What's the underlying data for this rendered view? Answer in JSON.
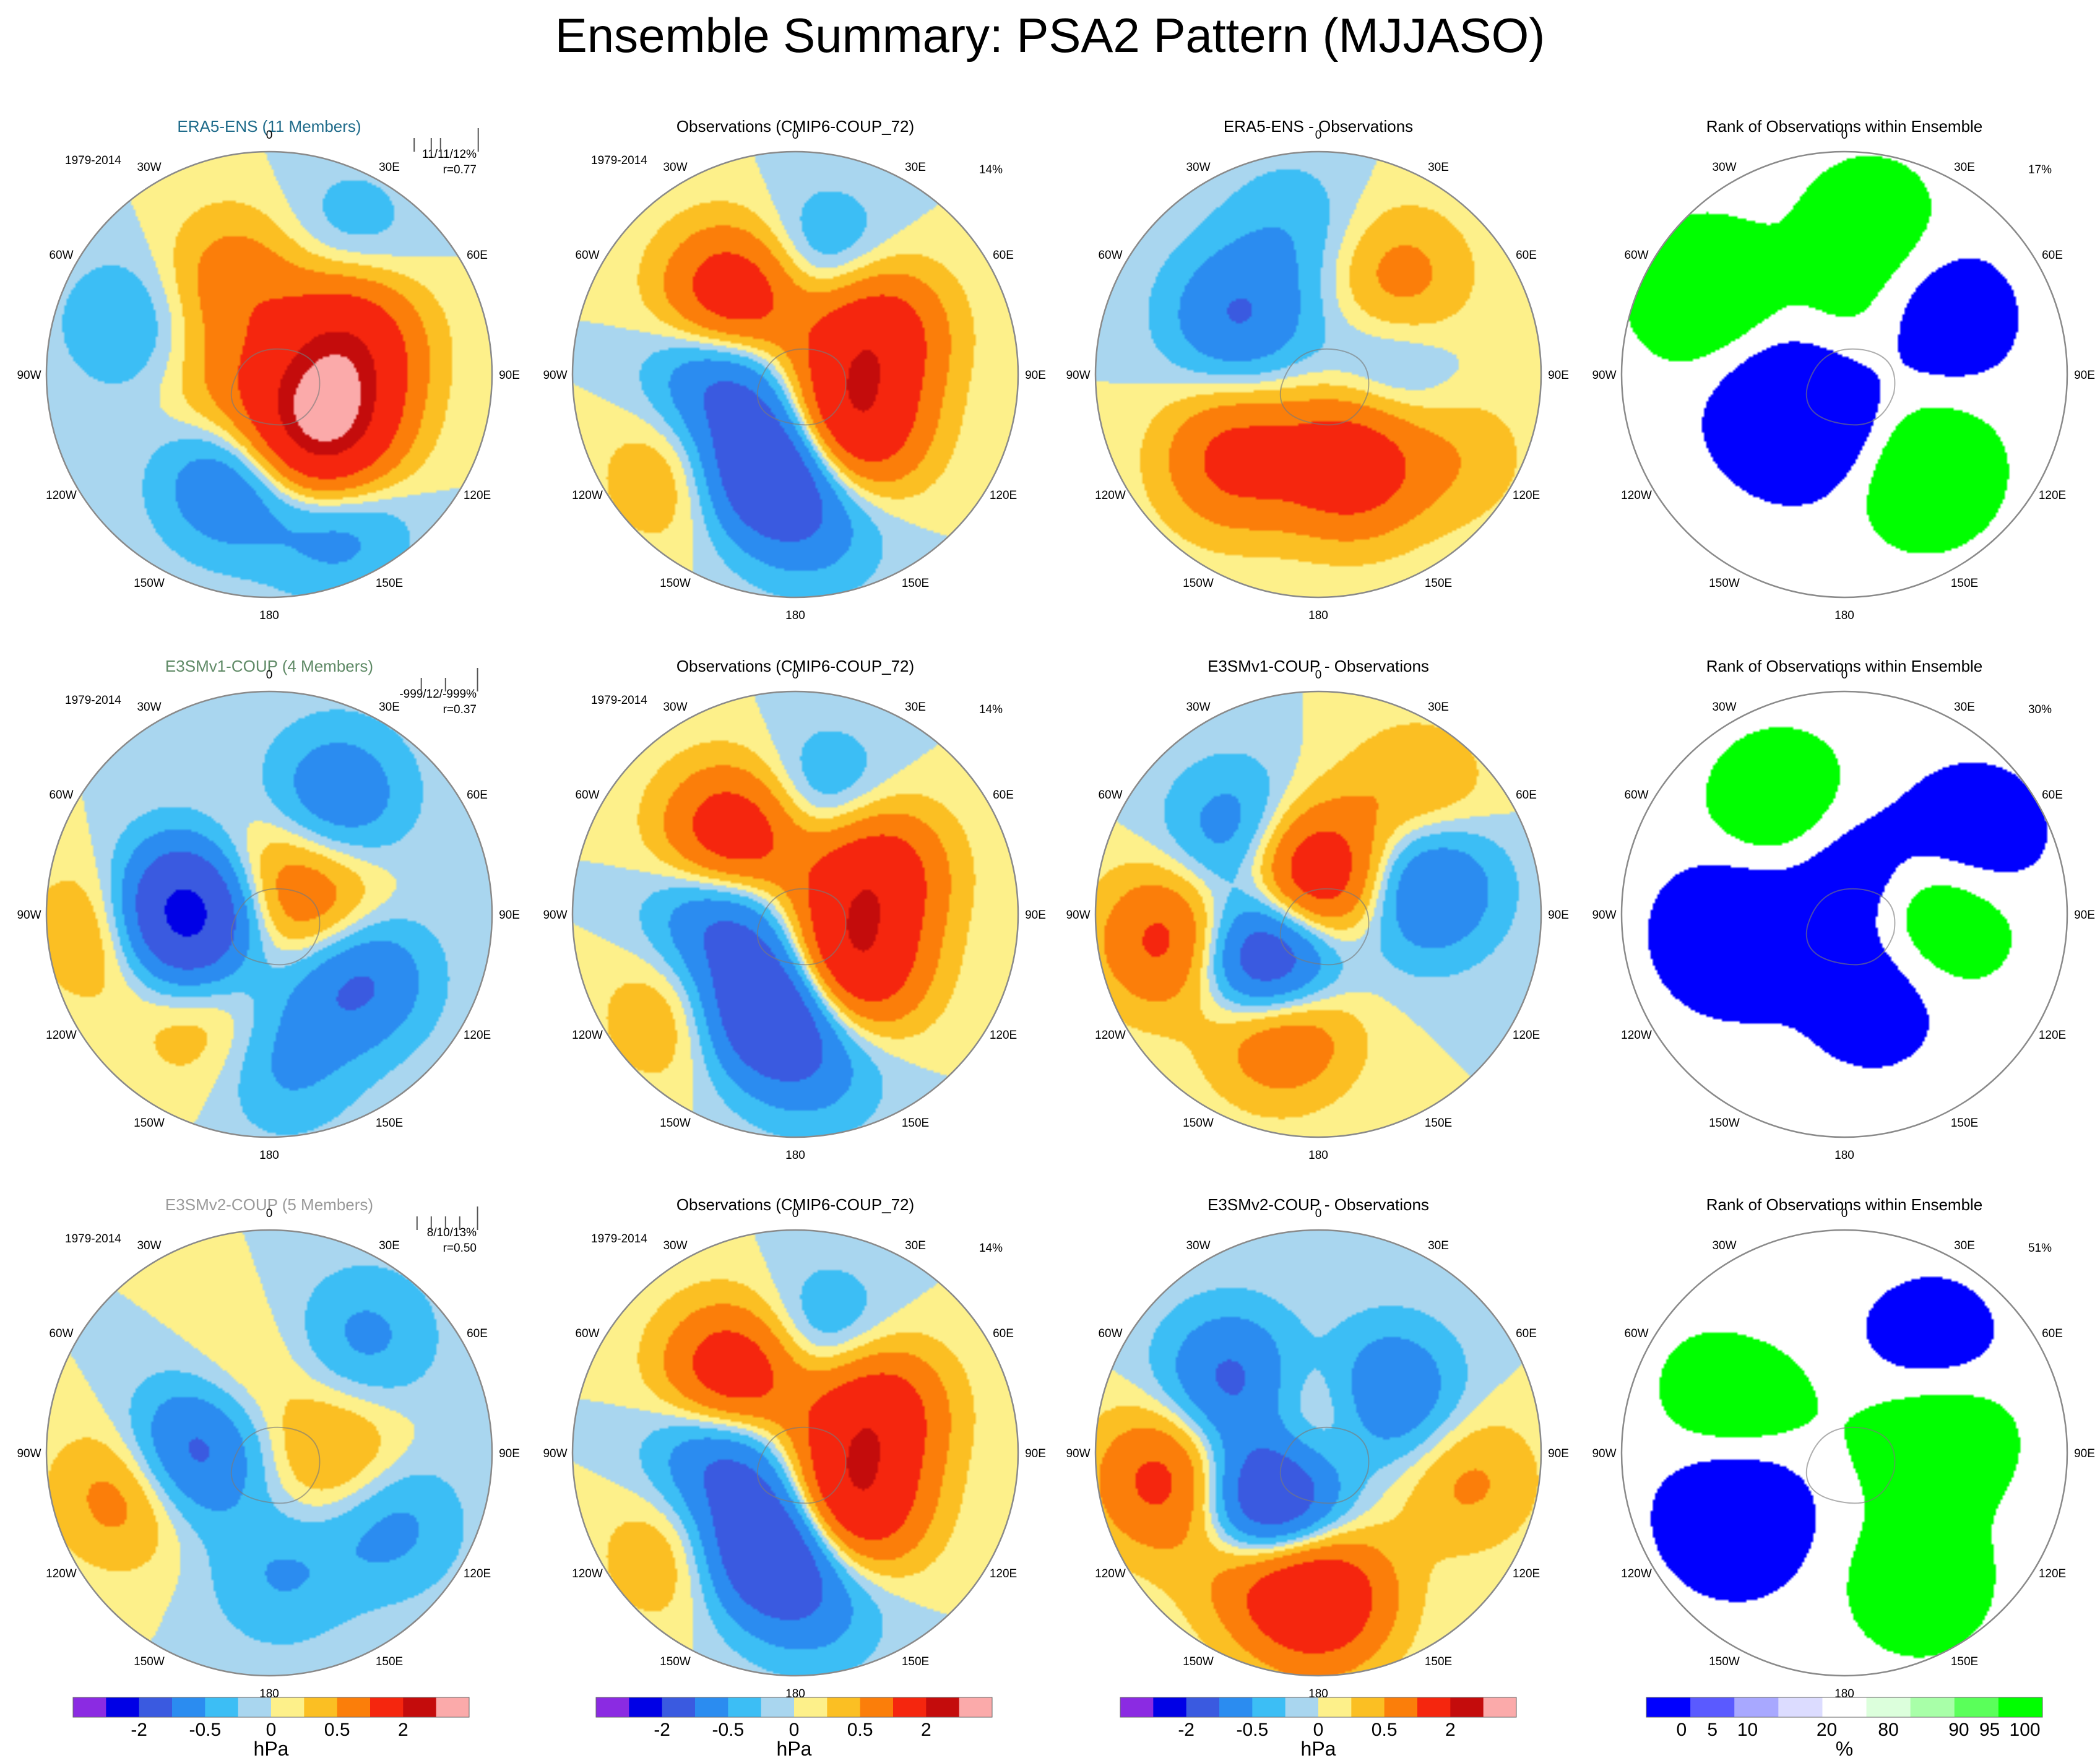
{
  "figure_title": "Ensemble Summary: PSA2 Pattern (MJJASO)",
  "colors": {
    "anomaly_levels": [
      "#8b2be2",
      "#0000e6",
      "#3a5ae0",
      "#2b8cf0",
      "#3cbef5",
      "#a9d6ef",
      "#fdf08a",
      "#fbbf23",
      "#fb7e0a",
      "#f5260e",
      "#c40c0c",
      "#fbaaaa"
    ],
    "rank_levels": [
      "#0000ff",
      "#5a5aff",
      "#a8a8ff",
      "#dcdcff",
      "#ffffff",
      "#dcffdc",
      "#a8ffa8",
      "#5aff5a",
      "#00ff00"
    ]
  },
  "lon_labels": [
    "0",
    "30E",
    "60E",
    "90E",
    "120E",
    "150E",
    "180",
    "150W",
    "120W",
    "90W",
    "60W",
    "30W"
  ],
  "colorbars": {
    "anomaly": {
      "unit": "hPa",
      "tick_labels": [
        "-2",
        "-0.5",
        "0",
        "0.5",
        "2"
      ]
    },
    "rank": {
      "unit": "%",
      "tick_labels": [
        "0",
        "5",
        "10",
        "20",
        "80",
        "90",
        "95",
        "100"
      ]
    }
  },
  "chart_data": [
    {
      "type": "heatmap",
      "kind": "anomaly",
      "title": "ERA5-ENS (11 Members)",
      "title_color": "#1f6b8a",
      "period": "1979-2014",
      "stats": [
        "11/11/12%",
        "r=0.77"
      ],
      "spread_ticks": [
        0.08,
        0.32,
        0.45,
        0.98
      ],
      "centers": [
        {
          "lon": 140,
          "lat": -58,
          "v": 2.3
        },
        {
          "lon": 65,
          "lat": -55,
          "v": 1.4
        },
        {
          "lon": -20,
          "lat": -50,
          "v": 0.8
        },
        {
          "lon": 100,
          "lat": -62,
          "v": 0.7
        },
        {
          "lon": -160,
          "lat": -45,
          "v": -1.1
        },
        {
          "lon": 155,
          "lat": -25,
          "v": -0.8
        },
        {
          "lon": 30,
          "lat": -25,
          "v": -0.4
        },
        {
          "lon": -70,
          "lat": -30,
          "v": -0.5
        },
        {
          "lon": -120,
          "lat": -72,
          "v": 0.6
        }
      ]
    },
    {
      "type": "heatmap",
      "kind": "anomaly",
      "title": "Observations (CMIP6-COUP_72)",
      "period": "1979-2014",
      "stats": [
        "14%"
      ],
      "centers": [
        {
          "lon": -40,
          "lat": -52,
          "v": 2.0
        },
        {
          "lon": 60,
          "lat": -55,
          "v": 1.7
        },
        {
          "lon": 135,
          "lat": -60,
          "v": 2.0
        },
        {
          "lon": -165,
          "lat": -52,
          "v": -2.2
        },
        {
          "lon": -85,
          "lat": -60,
          "v": -1.4
        },
        {
          "lon": 15,
          "lat": -45,
          "v": -0.8
        },
        {
          "lon": -130,
          "lat": -28,
          "v": 0.6
        },
        {
          "lon": 170,
          "lat": -30,
          "v": -0.6
        }
      ]
    },
    {
      "type": "heatmap",
      "kind": "anomaly",
      "title": "ERA5-ENS - Observations",
      "period": "",
      "stats": [],
      "centers": [
        {
          "lon": 160,
          "lat": -52,
          "v": 1.6
        },
        {
          "lon": -135,
          "lat": -42,
          "v": 1.2
        },
        {
          "lon": 40,
          "lat": -40,
          "v": 0.7
        },
        {
          "lon": -55,
          "lat": -50,
          "v": -1.0
        },
        {
          "lon": 90,
          "lat": -62,
          "v": -0.5
        },
        {
          "lon": -10,
          "lat": -30,
          "v": -0.4
        },
        {
          "lon": 120,
          "lat": -25,
          "v": 0.4
        }
      ]
    },
    {
      "type": "heatmap",
      "kind": "rank",
      "title": "Rank of Observations within Ensemble",
      "period": "",
      "stats": [
        "17%"
      ],
      "centers": [
        {
          "lon": -120,
          "lat": -62,
          "v": -1.5
        },
        {
          "lon": 60,
          "lat": -45,
          "v": -1.2
        },
        {
          "lon": 140,
          "lat": -40,
          "v": 1.5
        },
        {
          "lon": -60,
          "lat": -25,
          "v": 1.3
        },
        {
          "lon": 10,
          "lat": -30,
          "v": 1.0
        },
        {
          "lon": 20,
          "lat": -70,
          "v": 0.6
        },
        {
          "lon": -170,
          "lat": -70,
          "v": -0.9
        }
      ]
    },
    {
      "type": "heatmap",
      "kind": "anomaly",
      "title": "E3SMv1-COUP (4 Members)",
      "title_color": "#5f8a66",
      "period": "1979-2014",
      "stats": [
        "-999/12/-999%",
        "r=0.37"
      ],
      "spread_ticks": [
        0.18,
        0.52,
        0.97
      ],
      "centers": [
        {
          "lon": -90,
          "lat": -55,
          "v": -2.8
        },
        {
          "lon": -95,
          "lat": -28,
          "v": 0.9
        },
        {
          "lon": 125,
          "lat": -48,
          "v": -1.3
        },
        {
          "lon": 30,
          "lat": -35,
          "v": -0.9
        },
        {
          "lon": 90,
          "lat": -68,
          "v": 0.9
        },
        {
          "lon": 175,
          "lat": -30,
          "v": -0.6
        },
        {
          "lon": -150,
          "lat": -40,
          "v": 0.5
        },
        {
          "lon": -10,
          "lat": -75,
          "v": 0.6
        }
      ]
    },
    {
      "type": "heatmap",
      "kind": "anomaly",
      "title": "Observations (CMIP6-COUP_72)",
      "period": "1979-2014",
      "stats": [
        "14%"
      ],
      "centers": [
        {
          "lon": -40,
          "lat": -52,
          "v": 2.0
        },
        {
          "lon": 60,
          "lat": -55,
          "v": 1.7
        },
        {
          "lon": 135,
          "lat": -60,
          "v": 2.0
        },
        {
          "lon": -165,
          "lat": -52,
          "v": -2.2
        },
        {
          "lon": -85,
          "lat": -60,
          "v": -1.4
        },
        {
          "lon": 15,
          "lat": -45,
          "v": -0.8
        },
        {
          "lon": -130,
          "lat": -28,
          "v": 0.6
        },
        {
          "lon": 170,
          "lat": -30,
          "v": -0.6
        }
      ]
    },
    {
      "type": "heatmap",
      "kind": "anomaly",
      "title": "E3SMv1-COUP - Observations",
      "period": "",
      "stats": [],
      "centers": [
        {
          "lon": -135,
          "lat": -62,
          "v": -2.6
        },
        {
          "lon": -160,
          "lat": -45,
          "v": 1.6
        },
        {
          "lon": -100,
          "lat": -30,
          "v": 1.3
        },
        {
          "lon": -10,
          "lat": -75,
          "v": 2.0
        },
        {
          "lon": 75,
          "lat": -45,
          "v": -1.2
        },
        {
          "lon": -45,
          "lat": -45,
          "v": -0.9
        },
        {
          "lon": 40,
          "lat": -28,
          "v": 0.6
        }
      ]
    },
    {
      "type": "heatmap",
      "kind": "rank",
      "title": "Rank of Observations within Ensemble",
      "period": "",
      "stats": [
        "30%"
      ],
      "centers": [
        {
          "lon": -100,
          "lat": -45,
          "v": -1.6
        },
        {
          "lon": -30,
          "lat": -40,
          "v": 1.3
        },
        {
          "lon": 90,
          "lat": -50,
          "v": 1.4
        },
        {
          "lon": 160,
          "lat": -55,
          "v": -1.0
        },
        {
          "lon": 60,
          "lat": -30,
          "v": -1.2
        },
        {
          "lon": 0,
          "lat": -72,
          "v": -1.1
        }
      ]
    },
    {
      "type": "heatmap",
      "kind": "anomaly",
      "title": "E3SMv2-COUP (5 Members)",
      "title_color": "#9a9a9a",
      "period": "1979-2014",
      "stats": [
        "8/10/13%",
        "r=0.50"
      ],
      "spread_ticks": [
        0.12,
        0.32,
        0.52,
        0.72,
        0.97
      ],
      "centers": [
        {
          "lon": -90,
          "lat": -58,
          "v": -1.4
        },
        {
          "lon": -105,
          "lat": -32,
          "v": 0.9
        },
        {
          "lon": 95,
          "lat": -62,
          "v": 0.7
        },
        {
          "lon": 120,
          "lat": -35,
          "v": -0.7
        },
        {
          "lon": 40,
          "lat": -30,
          "v": -0.6
        },
        {
          "lon": -20,
          "lat": -60,
          "v": 0.3
        },
        {
          "lon": 175,
          "lat": -40,
          "v": -0.5
        }
      ]
    },
    {
      "type": "heatmap",
      "kind": "anomaly",
      "title": "Observations (CMIP6-COUP_72)",
      "period": "1979-2014",
      "stats": [
        "14%"
      ],
      "centers": [
        {
          "lon": -40,
          "lat": -52,
          "v": 2.0
        },
        {
          "lon": 60,
          "lat": -55,
          "v": 1.7
        },
        {
          "lon": 135,
          "lat": -60,
          "v": 2.0
        },
        {
          "lon": -165,
          "lat": -52,
          "v": -2.2
        },
        {
          "lon": -85,
          "lat": -60,
          "v": -1.4
        },
        {
          "lon": 15,
          "lat": -45,
          "v": -0.8
        },
        {
          "lon": -130,
          "lat": -28,
          "v": 0.6
        },
        {
          "lon": 170,
          "lat": -30,
          "v": -0.6
        }
      ]
    },
    {
      "type": "heatmap",
      "kind": "anomaly",
      "title": "E3SMv2-COUP - Observations",
      "period": "",
      "stats": [],
      "centers": [
        {
          "lon": -140,
          "lat": -60,
          "v": -2.6
        },
        {
          "lon": -50,
          "lat": -45,
          "v": -1.2
        },
        {
          "lon": 50,
          "lat": -55,
          "v": -1.2
        },
        {
          "lon": -150,
          "lat": -42,
          "v": 1.2
        },
        {
          "lon": 180,
          "lat": -32,
          "v": 1.8
        },
        {
          "lon": -100,
          "lat": -28,
          "v": 1.3
        },
        {
          "lon": 100,
          "lat": -30,
          "v": 0.6
        },
        {
          "lon": 0,
          "lat": -75,
          "v": 0.8
        }
      ]
    },
    {
      "type": "heatmap",
      "kind": "rank",
      "title": "Rank of Observations within Ensemble",
      "period": "",
      "stats": [
        "51%"
      ],
      "centers": [
        {
          "lon": -120,
          "lat": -40,
          "v": -1.6
        },
        {
          "lon": -60,
          "lat": -40,
          "v": 1.3
        },
        {
          "lon": 80,
          "lat": -50,
          "v": 1.3
        },
        {
          "lon": 40,
          "lat": -35,
          "v": -1.0
        },
        {
          "lon": -30,
          "lat": -25,
          "v": -0.4
        },
        {
          "lon": 150,
          "lat": -30,
          "v": 1.1
        },
        {
          "lon": 60,
          "lat": -75,
          "v": 0.2
        }
      ]
    }
  ]
}
